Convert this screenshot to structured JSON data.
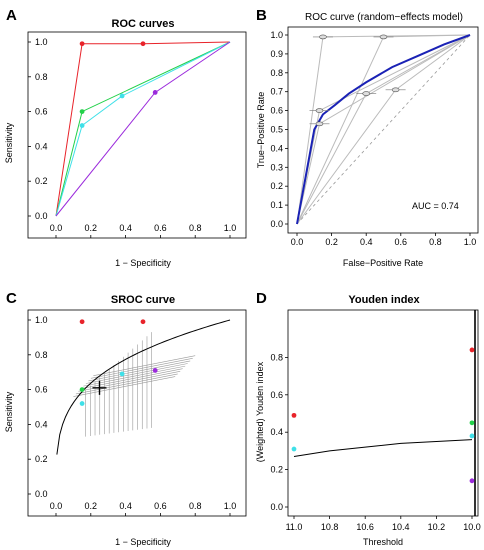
{
  "chart_data": [
    {
      "panel": "A",
      "type": "line",
      "title": "ROC curves",
      "xlabel": "1 − Specificity",
      "ylabel": "Sensitivity",
      "xlim": [
        0,
        1
      ],
      "ylim": [
        0,
        1
      ],
      "xticks": [
        "0.0",
        "0.2",
        "0.4",
        "0.6",
        "0.8",
        "1.0"
      ],
      "yticks": [
        "0.0",
        "0.2",
        "0.4",
        "0.6",
        "0.8",
        "1.0"
      ],
      "series": [
        {
          "color": "#e8232a",
          "points": [
            [
              0.15,
              0.99
            ],
            [
              0.5,
              0.99
            ]
          ]
        },
        {
          "color": "#22d14a",
          "points": [
            [
              0.15,
              0.6
            ]
          ]
        },
        {
          "color": "#3fe0e8",
          "points": [
            [
              0.15,
              0.52
            ],
            [
              0.38,
              0.69
            ]
          ]
        },
        {
          "color": "#9b2bdc",
          "points": [
            [
              0.57,
              0.71
            ]
          ]
        }
      ]
    },
    {
      "panel": "B",
      "type": "line",
      "title": "ROC curve (random−effects model)",
      "xlabel": "False−Positive Rate",
      "ylabel": "True−Positive Rate",
      "xlim": [
        0,
        1
      ],
      "ylim": [
        0,
        1
      ],
      "xticks": [
        "0.0",
        "0.2",
        "0.4",
        "0.6",
        "0.8",
        "1.0"
      ],
      "yticks": [
        "0.0",
        "0.1",
        "0.2",
        "0.3",
        "0.4",
        "0.5",
        "0.6",
        "0.7",
        "0.8",
        "0.9",
        "1.0"
      ],
      "auc_label": "AUC = 0.74",
      "pooled_curve": [
        [
          0,
          0
        ],
        [
          0.1,
          0.5
        ],
        [
          0.15,
          0.58
        ],
        [
          0.22,
          0.63
        ],
        [
          0.3,
          0.69
        ],
        [
          0.4,
          0.75
        ],
        [
          0.55,
          0.83
        ],
        [
          0.7,
          0.89
        ],
        [
          0.85,
          0.95
        ],
        [
          1,
          1
        ]
      ],
      "study_points": [
        [
          0.15,
          0.99
        ],
        [
          0.5,
          0.99
        ],
        [
          0.13,
          0.6
        ],
        [
          0.13,
          0.53
        ],
        [
          0.4,
          0.69
        ],
        [
          0.57,
          0.71
        ]
      ]
    },
    {
      "panel": "C",
      "type": "scatter",
      "title": "SROC curve",
      "xlabel": "1 − Specificity",
      "ylabel": "Sensitivity",
      "xlim": [
        0,
        1
      ],
      "ylim": [
        0,
        1
      ],
      "xticks": [
        "0.0",
        "0.2",
        "0.4",
        "0.6",
        "0.8",
        "1.0"
      ],
      "yticks": [
        "0.0",
        "0.2",
        "0.4",
        "0.6",
        "0.8",
        "1.0"
      ],
      "summary_point": [
        0.25,
        0.61
      ],
      "points": [
        {
          "x": 0.15,
          "y": 0.99,
          "color": "#e8232a"
        },
        {
          "x": 0.5,
          "y": 0.99,
          "color": "#e8232a"
        },
        {
          "x": 0.15,
          "y": 0.6,
          "color": "#22d14a"
        },
        {
          "x": 0.15,
          "y": 0.52,
          "color": "#3fe0e8"
        },
        {
          "x": 0.38,
          "y": 0.69,
          "color": "#3fe0e8"
        },
        {
          "x": 0.57,
          "y": 0.71,
          "color": "#9b2bdc"
        }
      ]
    },
    {
      "panel": "D",
      "type": "scatter",
      "title": "Youden index",
      "xlabel": "Threshold",
      "ylabel": "(Weighted) Youden index",
      "xlim": [
        11.0,
        10.0
      ],
      "ylim": [
        0,
        1
      ],
      "xticks": [
        "11.0",
        "10.8",
        "10.6",
        "10.4",
        "10.2",
        "10.0"
      ],
      "yticks": [
        "0.0",
        "0.2",
        "0.4",
        "0.6",
        "0.8"
      ],
      "points": [
        {
          "x": 11.0,
          "y": 0.49,
          "color": "#e8232a"
        },
        {
          "x": 11.0,
          "y": 0.31,
          "color": "#3fe0e8"
        },
        {
          "x": 10.0,
          "y": 0.84,
          "color": "#e8232a"
        },
        {
          "x": 10.0,
          "y": 0.45,
          "color": "#22d14a"
        },
        {
          "x": 10.0,
          "y": 0.38,
          "color": "#3fe0e8"
        },
        {
          "x": 10.0,
          "y": 0.14,
          "color": "#9b2bdc"
        }
      ],
      "curve": [
        [
          11.0,
          0.27
        ],
        [
          10.8,
          0.3
        ],
        [
          10.6,
          0.32
        ],
        [
          10.4,
          0.34
        ],
        [
          10.2,
          0.35
        ],
        [
          10.0,
          0.36
        ]
      ]
    }
  ],
  "panel_letters": [
    "A",
    "B",
    "C",
    "D"
  ]
}
